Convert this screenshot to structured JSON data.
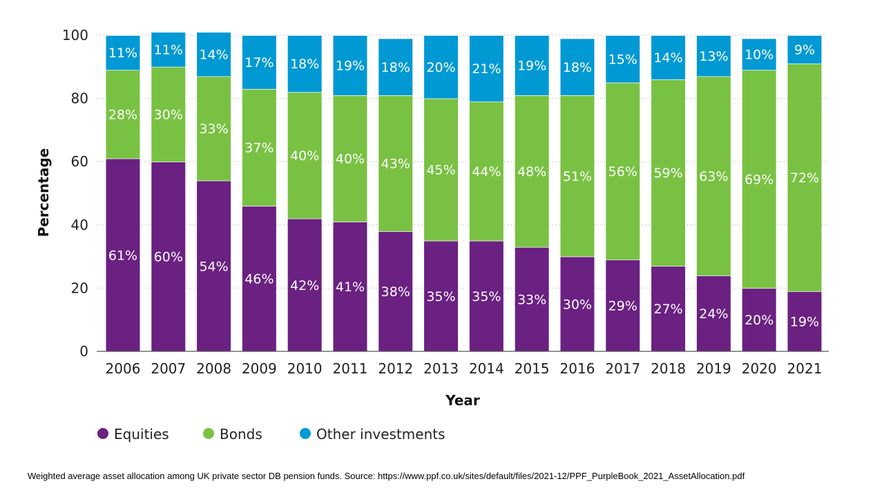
{
  "caption": "Weighted average asset allocation among UK private sector DB pension funds. Source: https://www.ppf.co.uk/sites/default/files/2021-12/PPF_PurpleBook_2021_AssetAllocation.pdf",
  "chart_data": {
    "type": "bar",
    "stacked": true,
    "title": "",
    "xlabel": "Year",
    "ylabel": "Percentage",
    "ylim": [
      0,
      100
    ],
    "yticks": [
      0,
      20,
      40,
      60,
      80,
      100
    ],
    "grid": "horizontal-dotted",
    "legend_position": "bottom-left",
    "categories": [
      "2006",
      "2007",
      "2008",
      "2009",
      "2010",
      "2011",
      "2012",
      "2013",
      "2014",
      "2015",
      "2016",
      "2017",
      "2018",
      "2019",
      "2020",
      "2021"
    ],
    "series": [
      {
        "name": "Equities",
        "color": "#6a2181",
        "values": [
          61,
          60,
          54,
          46,
          42,
          41,
          38,
          35,
          35,
          33,
          30,
          29,
          27,
          24,
          20,
          19
        ],
        "labels": [
          "61%",
          "60%",
          "54%",
          "46%",
          "42%",
          "41%",
          "38%",
          "35%",
          "35%",
          "33%",
          "30%",
          "29%",
          "27%",
          "24%",
          "20%",
          "19%"
        ]
      },
      {
        "name": "Bonds",
        "color": "#79c143",
        "values": [
          28,
          30,
          33,
          37,
          40,
          40,
          43,
          45,
          44,
          48,
          51,
          56,
          59,
          63,
          69,
          72
        ],
        "labels": [
          "28%",
          "30%",
          "33%",
          "37%",
          "40%",
          "40%",
          "43%",
          "45%",
          "44%",
          "48%",
          "51%",
          "56%",
          "59%",
          "63%",
          "69%",
          "72%"
        ]
      },
      {
        "name": "Other investments",
        "color": "#0099d4",
        "values": [
          11,
          11,
          14,
          17,
          18,
          19,
          18,
          20,
          21,
          19,
          18,
          15,
          14,
          13,
          10,
          9
        ],
        "labels": [
          "11%",
          "11%",
          "14%",
          "17%",
          "18%",
          "19%",
          "18%",
          "20%",
          "21%",
          "19%",
          "18%",
          "15%",
          "14%",
          "13%",
          "10%",
          "9%"
        ]
      }
    ]
  }
}
